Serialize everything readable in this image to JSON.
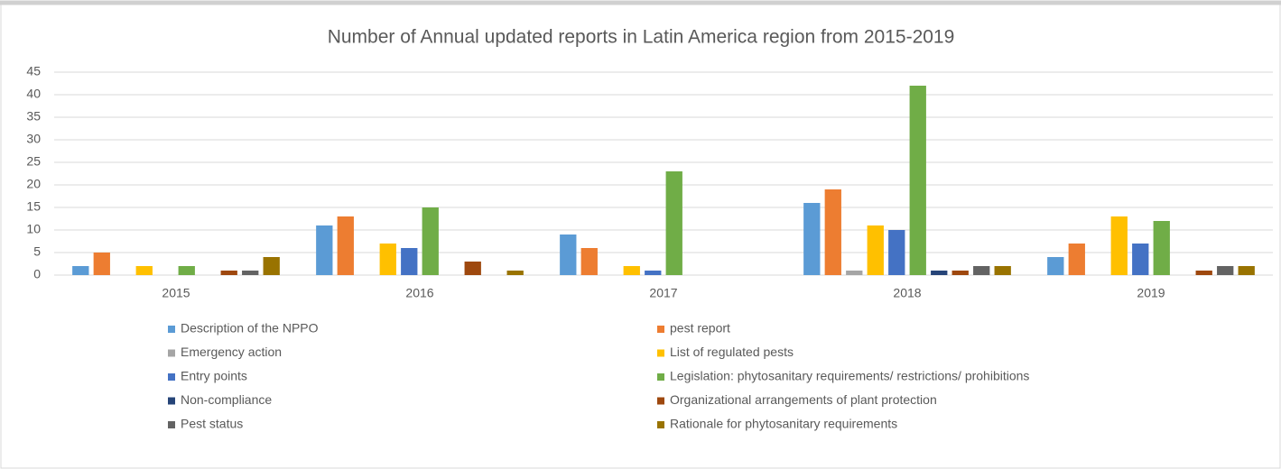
{
  "chart_data": {
    "type": "bar",
    "title": "Number of Annual updated reports in Latin America region from 2015-2019",
    "categories": [
      "2015",
      "2016",
      "2017",
      "2018",
      "2019"
    ],
    "series": [
      {
        "name": "Description of the NPPO",
        "color": "#5b9bd5",
        "values": [
          2,
          11,
          9,
          16,
          4
        ]
      },
      {
        "name": "pest report",
        "color": "#ed7d31",
        "values": [
          5,
          13,
          6,
          19,
          7
        ]
      },
      {
        "name": "Emergency action",
        "color": "#a5a5a5",
        "values": [
          0,
          0,
          0,
          1,
          0
        ]
      },
      {
        "name": "List of regulated pests",
        "color": "#ffc000",
        "values": [
          2,
          7,
          2,
          11,
          13
        ]
      },
      {
        "name": "Entry points",
        "color": "#4472c4",
        "values": [
          0,
          6,
          1,
          10,
          7
        ]
      },
      {
        "name": "Legislation: phytosanitary requirements/ restrictions/ prohibitions",
        "color": "#70ad47",
        "values": [
          2,
          15,
          23,
          42,
          12
        ]
      },
      {
        "name": "Non-compliance",
        "color": "#264478",
        "values": [
          0,
          0,
          0,
          1,
          0
        ]
      },
      {
        "name": "Organizational arrangements of plant protection",
        "color": "#9e480e",
        "values": [
          1,
          3,
          0,
          1,
          1
        ]
      },
      {
        "name": "Pest status",
        "color": "#636363",
        "values": [
          1,
          0,
          0,
          2,
          2
        ]
      },
      {
        "name": "Rationale for phytosanitary requirements",
        "color": "#997300",
        "values": [
          4,
          1,
          0,
          2,
          2
        ]
      }
    ],
    "ylim": [
      0,
      45
    ],
    "yticks": [
      0,
      5,
      10,
      15,
      20,
      25,
      30,
      35,
      40,
      45
    ],
    "grid": true,
    "legend": "bottom"
  }
}
